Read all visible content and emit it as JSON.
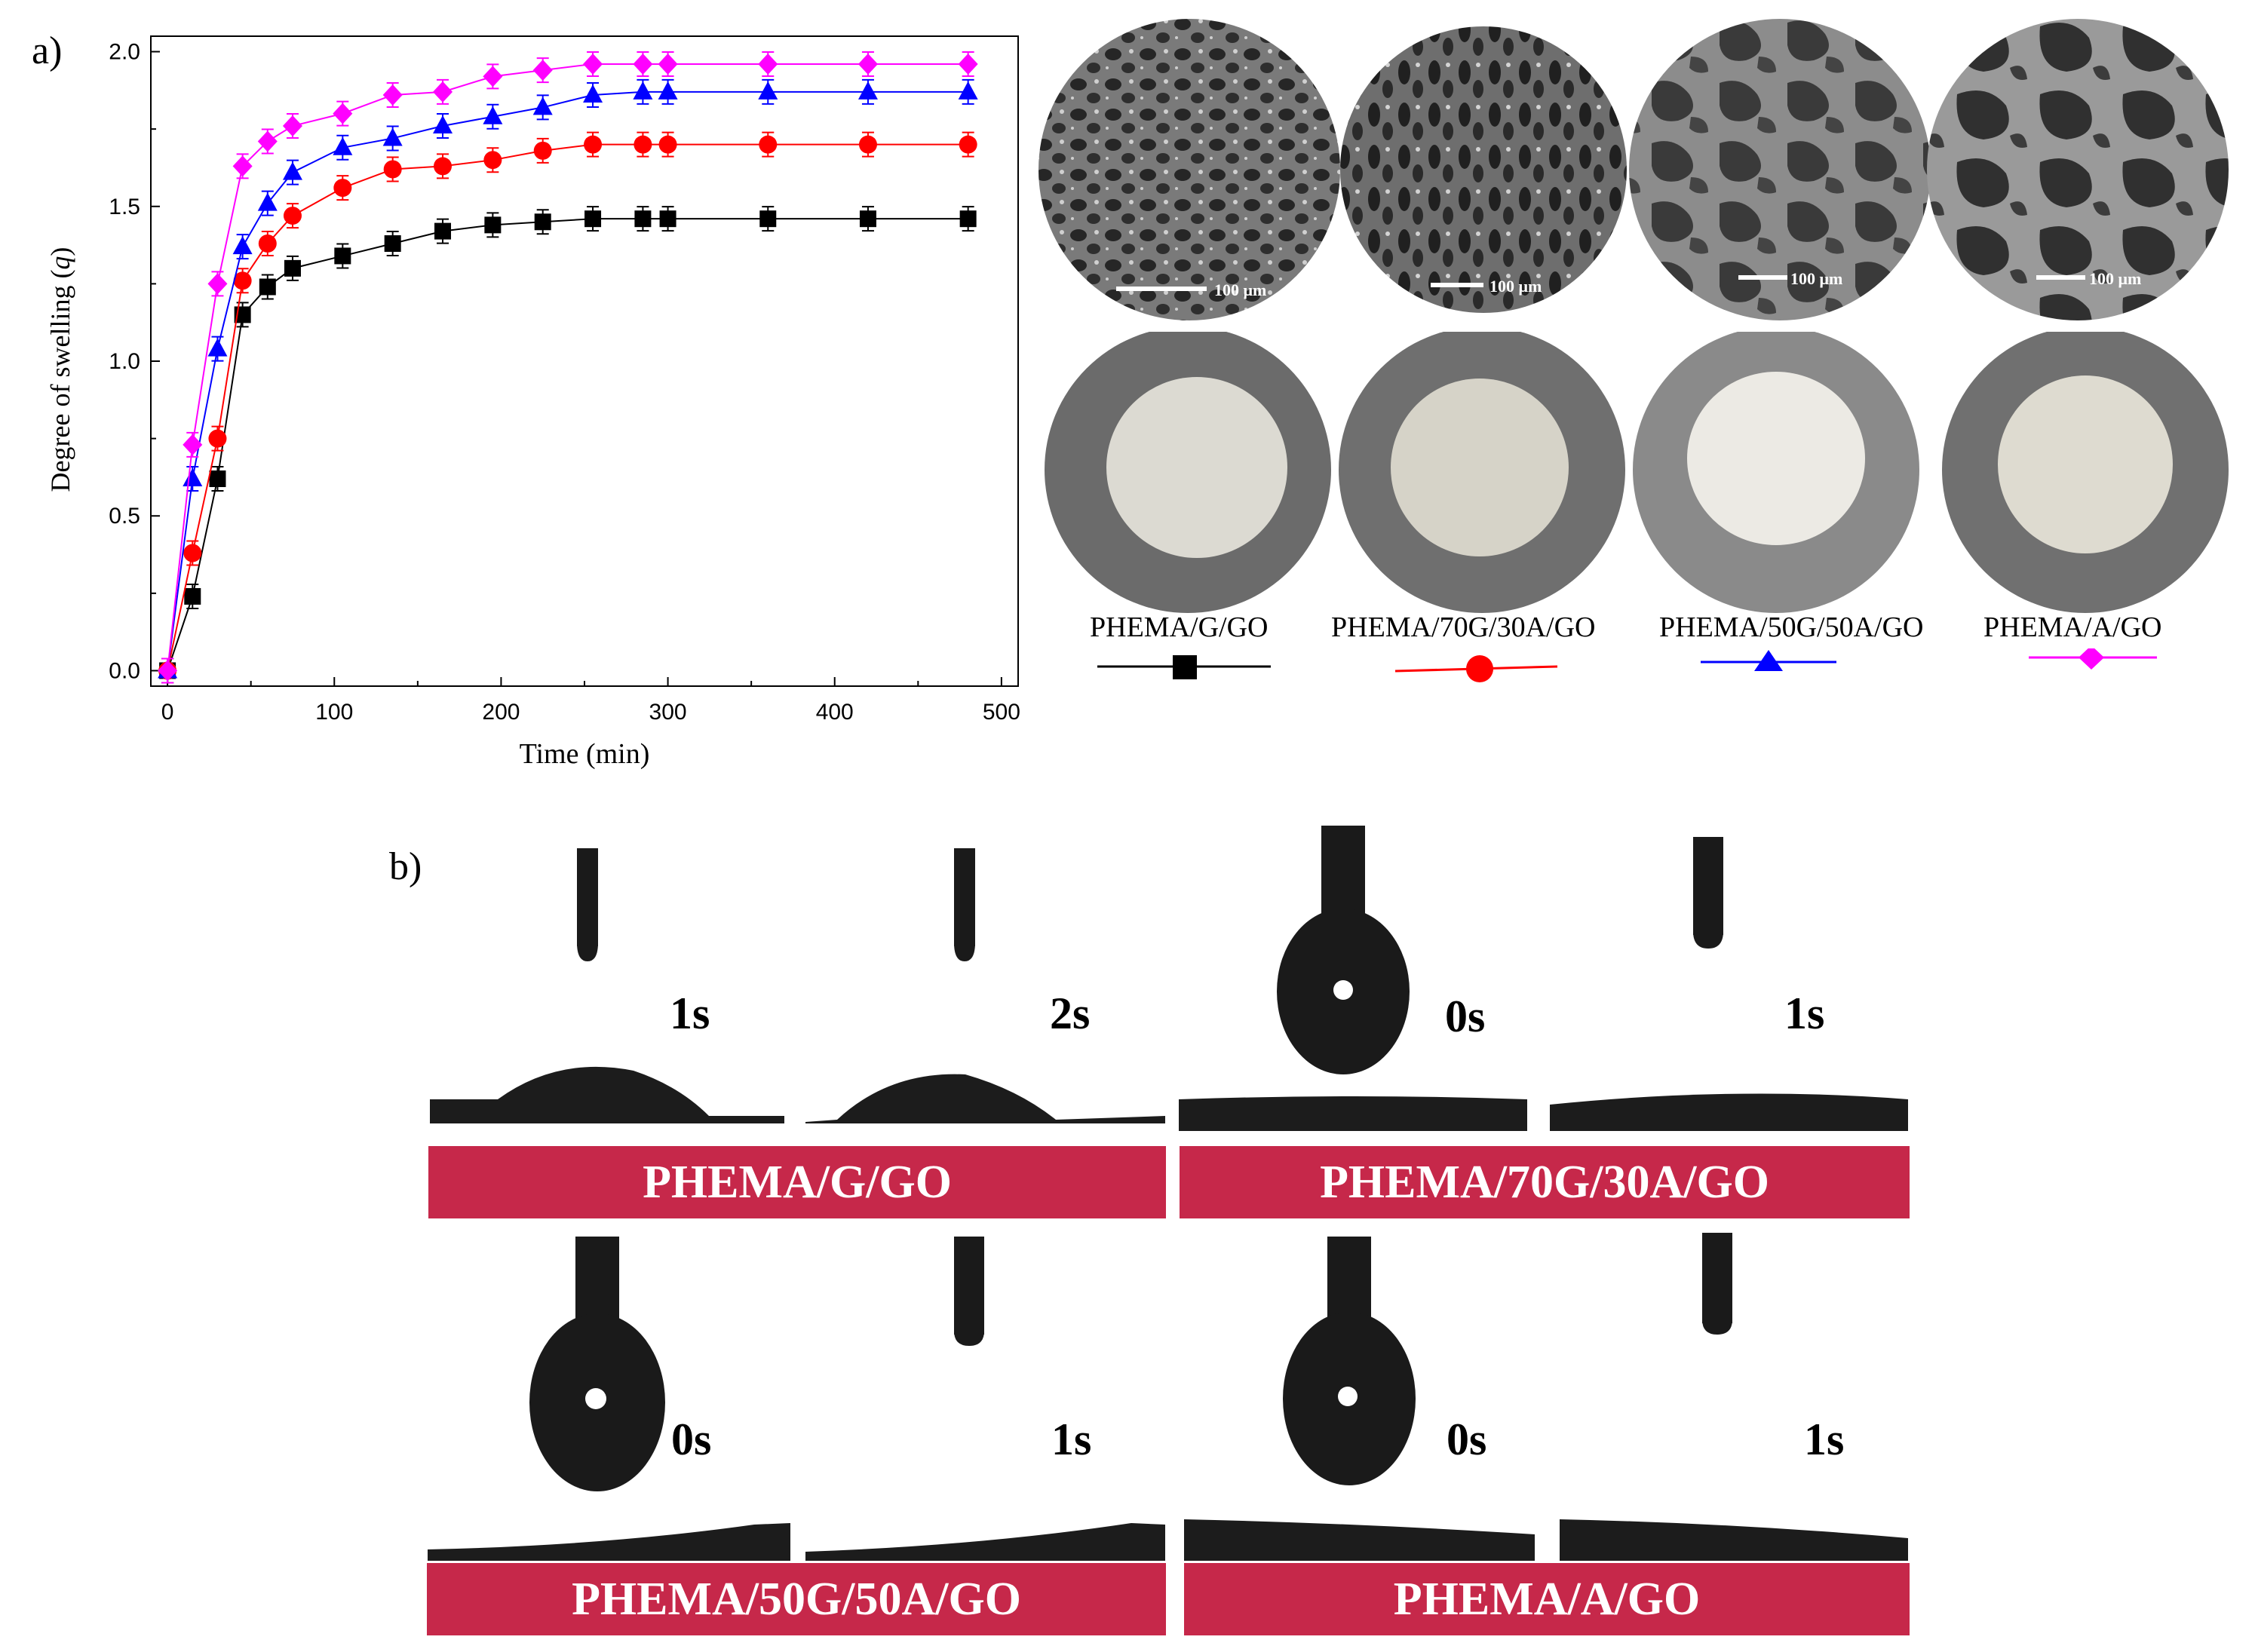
{
  "panel_a": {
    "label": "a)"
  },
  "panel_b": {
    "label": "b)"
  },
  "chart_data": {
    "type": "line",
    "xlabel": "Time (min)",
    "ylabel_main": "Degree of swelling (",
    "ylabel_var": "q",
    "ylabel_end": ")",
    "xlim": [
      -10,
      510
    ],
    "ylim": [
      -0.05,
      2.05
    ],
    "xticks": [
      0,
      100,
      200,
      300,
      400,
      500
    ],
    "yticks": [
      0.0,
      0.5,
      1.0,
      1.5,
      2.0
    ],
    "x": [
      0,
      15,
      30,
      45,
      60,
      75,
      105,
      135,
      165,
      195,
      225,
      255,
      285,
      300,
      360,
      420,
      480
    ],
    "series": [
      {
        "name": "PHEMA/G/GO",
        "color": "#000000",
        "marker": "square",
        "values": [
          0.0,
          0.24,
          0.62,
          1.15,
          1.24,
          1.3,
          1.34,
          1.38,
          1.42,
          1.44,
          1.45,
          1.46,
          1.46,
          1.46,
          1.46,
          1.46,
          1.46
        ]
      },
      {
        "name": "PHEMA/70G/30A/GO",
        "color": "#ff0000",
        "marker": "circle",
        "values": [
          0.0,
          0.38,
          0.75,
          1.26,
          1.38,
          1.47,
          1.56,
          1.62,
          1.63,
          1.65,
          1.68,
          1.7,
          1.7,
          1.7,
          1.7,
          1.7,
          1.7
        ]
      },
      {
        "name": "PHEMA/50G/50A/GO",
        "color": "#0000ff",
        "marker": "triangle",
        "values": [
          0.0,
          0.62,
          1.04,
          1.37,
          1.51,
          1.61,
          1.69,
          1.72,
          1.76,
          1.79,
          1.82,
          1.86,
          1.87,
          1.87,
          1.87,
          1.87,
          1.87
        ]
      },
      {
        "name": "PHEMA/A/GO",
        "color": "#ff00ff",
        "marker": "diamond",
        "values": [
          0.0,
          0.73,
          1.25,
          1.63,
          1.71,
          1.76,
          1.8,
          1.86,
          1.87,
          1.92,
          1.94,
          1.96,
          1.96,
          1.96,
          1.96,
          1.96,
          1.96
        ]
      }
    ]
  },
  "sem": {
    "scale_bar_text": "100 μm"
  },
  "samples": [
    {
      "name": "PHEMA/G/GO",
      "color": "#000000",
      "marker": "square"
    },
    {
      "name": "PHEMA/70G/30A/GO",
      "color": "#ff0000",
      "marker": "circle"
    },
    {
      "name": "PHEMA/50G/50A/GO",
      "color": "#0000ff",
      "marker": "triangle"
    },
    {
      "name": "PHEMA/A/GO",
      "color": "#ff00ff",
      "marker": "diamond"
    }
  ],
  "contact_angle": {
    "bar_color": "#c6284a",
    "groups": [
      {
        "sample": "PHEMA/G/GO",
        "times": [
          "1s",
          "2s"
        ]
      },
      {
        "sample": "PHEMA/70G/30A/GO",
        "times": [
          "0s",
          "1s"
        ]
      },
      {
        "sample": "PHEMA/50G/50A/GO",
        "times": [
          "0s",
          "1s"
        ]
      },
      {
        "sample": "PHEMA/A/GO",
        "times": [
          "0s",
          "1s"
        ]
      }
    ]
  }
}
